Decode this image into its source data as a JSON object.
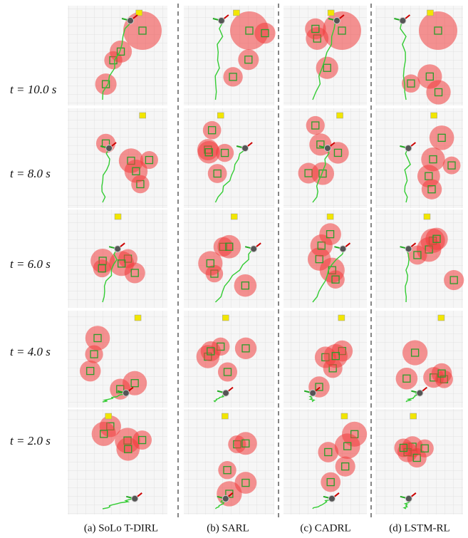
{
  "row_labels": [
    "t = 10.0 s",
    "t = 8.0 s",
    "t = 6.0 s",
    "t = 4.0 s",
    "t = 2.0 s"
  ],
  "column_captions": [
    "(a) SoLo T-DIRL",
    "(b) SARL",
    "(c) CADRL",
    "(d) LSTM-RL"
  ]
}
